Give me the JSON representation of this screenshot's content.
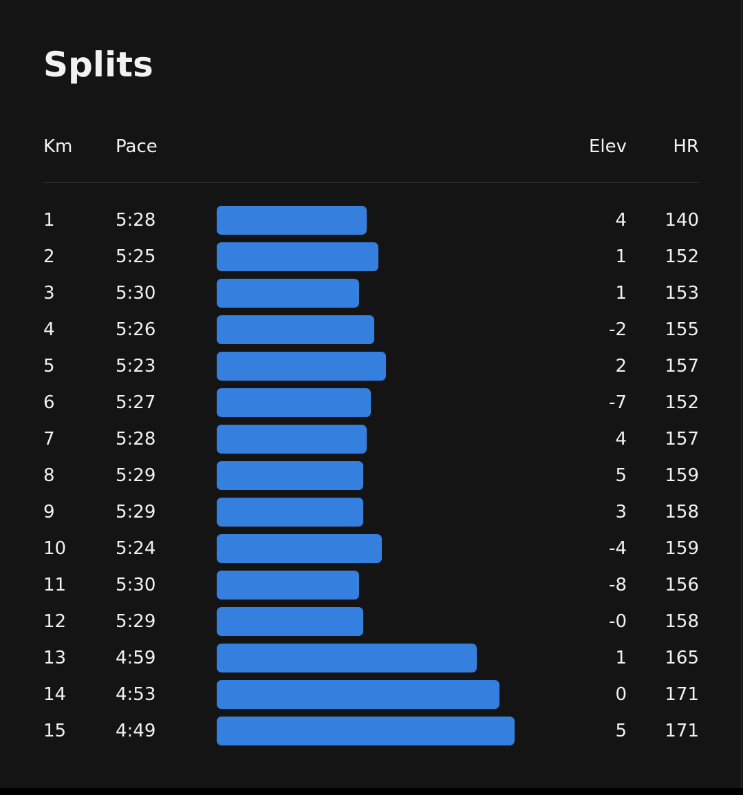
{
  "title": "Splits",
  "table": {
    "columns": [
      "Km",
      "Pace",
      "Elev",
      "HR"
    ],
    "rows": [
      [
        "1",
        "5:28",
        "4",
        "140"
      ],
      [
        "2",
        "5:25",
        "1",
        "152"
      ],
      [
        "3",
        "5:30",
        "1",
        "153"
      ],
      [
        "4",
        "5:26",
        "-2",
        "155"
      ],
      [
        "5",
        "5:23",
        "2",
        "157"
      ],
      [
        "6",
        "5:27",
        "-7",
        "152"
      ],
      [
        "7",
        "5:28",
        "4",
        "157"
      ],
      [
        "8",
        "5:29",
        "5",
        "159"
      ],
      [
        "9",
        "5:29",
        "3",
        "158"
      ],
      [
        "10",
        "5:24",
        "-4",
        "159"
      ],
      [
        "11",
        "5:30",
        "-8",
        "156"
      ],
      [
        "12",
        "5:29",
        "-0",
        "158"
      ],
      [
        "13",
        "4:59",
        "1",
        "165"
      ],
      [
        "14",
        "4:53",
        "0",
        "171"
      ],
      [
        "15",
        "4:49",
        "5",
        "171"
      ]
    ]
  }
}
